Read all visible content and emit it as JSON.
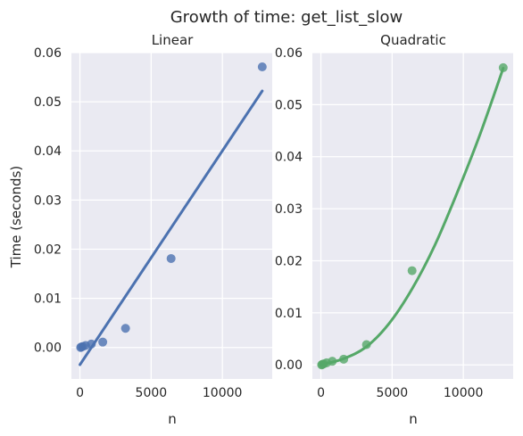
{
  "figure": {
    "title": "Growth of time: get_list_slow"
  },
  "chart_data": [
    {
      "type": "scatter",
      "title": "Linear",
      "xlabel": "n",
      "ylabel": "Time (seconds)",
      "xlim": [
        -600,
        13500
      ],
      "ylim": [
        -0.0064,
        0.06
      ],
      "xticks": [
        0,
        5000,
        10000
      ],
      "yticks": [
        0.0,
        0.01,
        0.02,
        0.03,
        0.04,
        0.05,
        0.06
      ],
      "grid": true,
      "points": {
        "name": "",
        "color": "#4c72b0",
        "x": [
          50,
          100,
          200,
          400,
          800,
          1600,
          3200,
          6400,
          12800
        ],
        "y": [
          0.0,
          0.0001,
          0.0002,
          0.0004,
          0.0007,
          0.0011,
          0.0039,
          0.0181,
          0.0571
        ]
      },
      "fit": {
        "kind": "linear",
        "color": "#4c72b0",
        "x": [
          0,
          12800
        ],
        "y": [
          -0.0035,
          0.0522
        ]
      }
    },
    {
      "type": "scatter",
      "title": "Quadratic",
      "xlabel": "n",
      "ylabel": "",
      "xlim": [
        -600,
        13500
      ],
      "ylim": [
        -0.0027,
        0.06
      ],
      "xticks": [
        0,
        5000,
        10000
      ],
      "yticks": [
        0.0,
        0.01,
        0.02,
        0.03,
        0.04,
        0.05,
        0.06
      ],
      "grid": true,
      "points": {
        "name": "",
        "color": "#55a868",
        "x": [
          50,
          100,
          200,
          400,
          800,
          1600,
          3200,
          6400,
          12800
        ],
        "y": [
          0.0,
          0.0001,
          0.0002,
          0.0004,
          0.0007,
          0.0011,
          0.0039,
          0.0181,
          0.0571
        ]
      },
      "fit": {
        "kind": "quadratic",
        "color": "#55a868",
        "x": [
          0,
          1600,
          3200,
          4800,
          6400,
          8000,
          9600,
          11200,
          12800
        ],
        "y": [
          0.0,
          0.0012,
          0.0035,
          0.008,
          0.0146,
          0.023,
          0.0333,
          0.0445,
          0.057
        ]
      }
    }
  ]
}
